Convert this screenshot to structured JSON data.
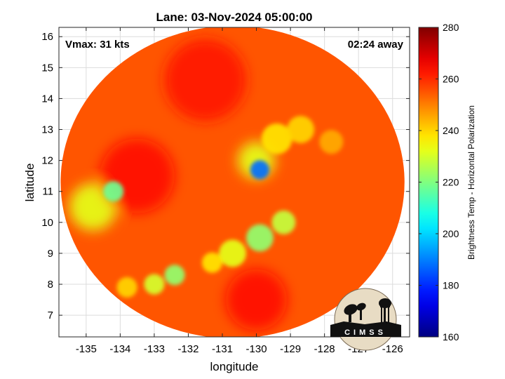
{
  "chart_data": {
    "type": "heatmap",
    "title": "Lane: 03-Nov-2024 05:00:00",
    "xlabel": "longitude",
    "ylabel": "latitude",
    "xlim": [
      -135.8,
      -125.5
    ],
    "ylim": [
      6.3,
      16.3
    ],
    "x_ticks": [
      -135,
      -134,
      -133,
      -132,
      -131,
      -130,
      -129,
      -128,
      -127,
      -126
    ],
    "y_ticks": [
      7,
      8,
      9,
      10,
      11,
      12,
      13,
      14,
      15,
      16
    ],
    "grid": true,
    "annotations": {
      "top_left": "Vmax: 31 kts",
      "top_right": "02:24 away"
    },
    "colorbar": {
      "label": "Brightness Temp - Horizontal Polarization",
      "range": [
        160,
        280
      ],
      "ticks": [
        160,
        180,
        200,
        220,
        240,
        260,
        280
      ],
      "colormap": "jet",
      "placement": "right"
    },
    "swath": {
      "center_lon": -130.7,
      "center_lat": 11.3,
      "radius_lon": 5.05,
      "radius_lat": 5.05,
      "background_value": 255
    },
    "features": [
      {
        "name": "storm-core",
        "lon": -129.9,
        "lat": 11.7,
        "value": 188,
        "radius_deg": 0.28
      },
      {
        "name": "storm-band",
        "lon": -130.0,
        "lat": 12.0,
        "value": 232,
        "radius_deg": 0.55
      },
      {
        "name": "north-band-1",
        "lon": -129.4,
        "lat": 12.7,
        "value": 238,
        "radius_deg": 0.45
      },
      {
        "name": "north-band-2",
        "lon": -128.7,
        "lat": 13.0,
        "value": 240,
        "radius_deg": 0.4
      },
      {
        "name": "north-band-3",
        "lon": -127.8,
        "lat": 12.6,
        "value": 245,
        "radius_deg": 0.35
      },
      {
        "name": "west-cell",
        "lon": -134.2,
        "lat": 11.0,
        "value": 218,
        "radius_deg": 0.3
      },
      {
        "name": "west-region",
        "lon": -134.8,
        "lat": 10.5,
        "value": 232,
        "radius_deg": 0.7
      },
      {
        "name": "rainband-1",
        "lon": -129.2,
        "lat": 10.0,
        "value": 228,
        "radius_deg": 0.35
      },
      {
        "name": "rainband-2",
        "lon": -129.9,
        "lat": 9.5,
        "value": 222,
        "radius_deg": 0.4
      },
      {
        "name": "rainband-3",
        "lon": -130.7,
        "lat": 9.0,
        "value": 232,
        "radius_deg": 0.4
      },
      {
        "name": "rainband-4",
        "lon": -131.3,
        "lat": 8.7,
        "value": 238,
        "radius_deg": 0.3
      },
      {
        "name": "south-cell-1",
        "lon": -132.4,
        "lat": 8.3,
        "value": 222,
        "radius_deg": 0.3
      },
      {
        "name": "south-cell-2",
        "lon": -133.0,
        "lat": 8.0,
        "value": 230,
        "radius_deg": 0.3
      },
      {
        "name": "south-cell-3",
        "lon": -133.8,
        "lat": 7.9,
        "value": 240,
        "radius_deg": 0.3
      },
      {
        "name": "dry-west",
        "lon": -133.5,
        "lat": 11.5,
        "value": 264,
        "radius_deg": 1.1
      },
      {
        "name": "dry-north",
        "lon": -131.5,
        "lat": 14.6,
        "value": 262,
        "radius_deg": 1.2
      },
      {
        "name": "dry-south",
        "lon": -130.0,
        "lat": 7.5,
        "value": 264,
        "radius_deg": 0.9
      }
    ],
    "logo": {
      "text": "CIMSS",
      "placement": "bottom-right"
    }
  }
}
